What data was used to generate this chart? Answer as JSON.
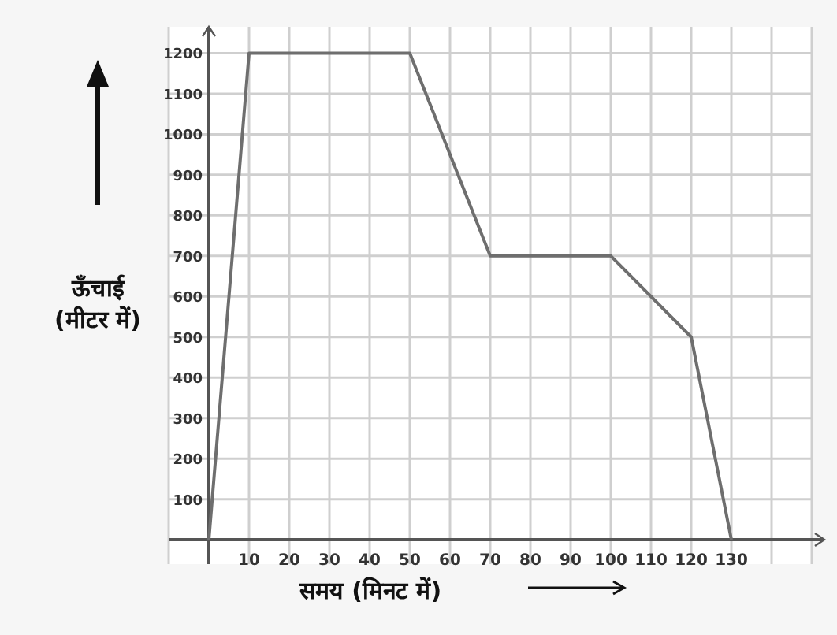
{
  "chart_data": {
    "type": "line",
    "xlabel": "समय (मिनट में)",
    "ylabel": "ऊँचाई (मीटर में)",
    "x": [
      0,
      10,
      50,
      70,
      100,
      120,
      130
    ],
    "series": [
      {
        "color": "#6e6e6e",
        "values": [
          0,
          1200,
          1200,
          700,
          700,
          500,
          0
        ]
      }
    ],
    "xlim": [
      -10,
      150
    ],
    "ylim": [
      -60,
      1265
    ],
    "xticks": [
      {
        "value": -10,
        "label": null
      },
      10,
      20,
      30,
      40,
      50,
      60,
      70,
      80,
      90,
      100,
      110,
      120,
      130,
      {
        "value": 140,
        "label": null
      },
      {
        "value": 150,
        "label": null
      }
    ],
    "yticks": [
      100,
      200,
      300,
      400,
      500,
      600,
      700,
      800,
      900,
      1000,
      1100,
      1200
    ],
    "grid": true,
    "marker": "none",
    "line_style": "solid"
  }
}
